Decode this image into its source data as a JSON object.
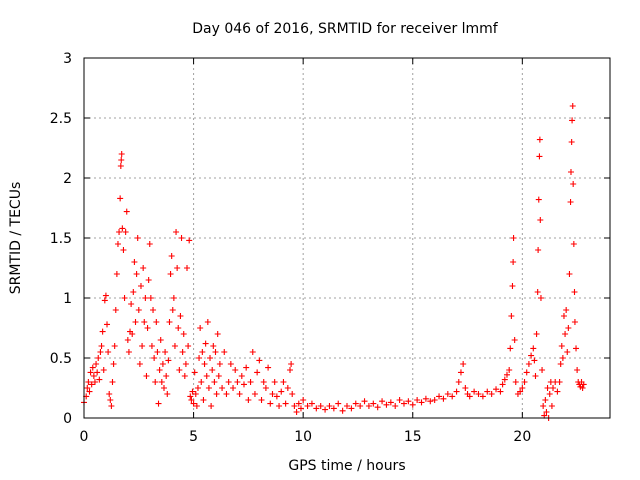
{
  "chart_data": {
    "type": "scatter",
    "title": "Day 046 of 2016, SRMTID for receiver lmmf",
    "xlabel": "GPS time / hours",
    "ylabel": "SRMTID / TECUs",
    "xlim": [
      0,
      24
    ],
    "ylim": [
      0,
      3
    ],
    "x_ticks": [
      0,
      5,
      10,
      15,
      20
    ],
    "x_tick_labels": [
      "0",
      "5",
      "10",
      "15",
      "20"
    ],
    "y_ticks": [
      0,
      0.5,
      1,
      1.5,
      2,
      2.5,
      3
    ],
    "y_tick_labels": [
      "0",
      "0.5",
      "1",
      "1.5",
      "2",
      "2.5",
      "3"
    ],
    "grid": true,
    "marker": "+",
    "series": [
      {
        "name": "SRMTID",
        "color": "#ff0000",
        "points": [
          [
            0.0,
            0.13
          ],
          [
            0.1,
            0.18
          ],
          [
            0.15,
            0.25
          ],
          [
            0.2,
            0.3
          ],
          [
            0.25,
            0.22
          ],
          [
            0.3,
            0.38
          ],
          [
            0.35,
            0.28
          ],
          [
            0.4,
            0.42
          ],
          [
            0.45,
            0.35
          ],
          [
            0.5,
            0.3
          ],
          [
            0.55,
            0.45
          ],
          [
            0.6,
            0.38
          ],
          [
            0.65,
            0.5
          ],
          [
            0.7,
            0.32
          ],
          [
            0.75,
            0.55
          ],
          [
            0.8,
            0.6
          ],
          [
            0.85,
            0.72
          ],
          [
            0.9,
            0.4
          ],
          [
            0.95,
            0.98
          ],
          [
            1.0,
            1.02
          ],
          [
            1.05,
            0.78
          ],
          [
            1.1,
            0.55
          ],
          [
            1.15,
            0.2
          ],
          [
            1.2,
            0.15
          ],
          [
            1.25,
            0.1
          ],
          [
            1.3,
            0.3
          ],
          [
            1.35,
            0.45
          ],
          [
            1.4,
            0.6
          ],
          [
            1.45,
            0.9
          ],
          [
            1.5,
            1.2
          ],
          [
            1.55,
            1.45
          ],
          [
            1.6,
            1.55
          ],
          [
            1.65,
            1.83
          ],
          [
            1.68,
            2.1
          ],
          [
            1.7,
            2.15
          ],
          [
            1.72,
            2.2
          ],
          [
            1.75,
            1.58
          ],
          [
            1.8,
            1.4
          ],
          [
            1.85,
            1.0
          ],
          [
            1.9,
            1.55
          ],
          [
            1.95,
            1.72
          ],
          [
            2.0,
            0.65
          ],
          [
            2.05,
            0.55
          ],
          [
            2.1,
            0.72
          ],
          [
            2.15,
            0.95
          ],
          [
            2.2,
            0.7
          ],
          [
            2.25,
            1.05
          ],
          [
            2.3,
            1.3
          ],
          [
            2.35,
            0.8
          ],
          [
            2.4,
            1.2
          ],
          [
            2.45,
            1.5
          ],
          [
            2.5,
            0.9
          ],
          [
            2.55,
            0.45
          ],
          [
            2.6,
            1.1
          ],
          [
            2.65,
            0.6
          ],
          [
            2.7,
            1.25
          ],
          [
            2.75,
            0.8
          ],
          [
            2.8,
            1.0
          ],
          [
            2.85,
            0.35
          ],
          [
            2.9,
            0.75
          ],
          [
            2.95,
            1.15
          ],
          [
            3.0,
            1.45
          ],
          [
            3.05,
            1.0
          ],
          [
            3.1,
            0.6
          ],
          [
            3.15,
            0.9
          ],
          [
            3.2,
            0.5
          ],
          [
            3.25,
            0.3
          ],
          [
            3.3,
            0.8
          ],
          [
            3.35,
            0.55
          ],
          [
            3.4,
            0.12
          ],
          [
            3.45,
            0.4
          ],
          [
            3.5,
            0.65
          ],
          [
            3.55,
            0.3
          ],
          [
            3.6,
            0.45
          ],
          [
            3.65,
            0.25
          ],
          [
            3.7,
            0.55
          ],
          [
            3.75,
            0.35
          ],
          [
            3.8,
            0.2
          ],
          [
            3.85,
            0.48
          ],
          [
            3.9,
            0.8
          ],
          [
            3.95,
            1.2
          ],
          [
            4.0,
            1.35
          ],
          [
            4.05,
            0.9
          ],
          [
            4.1,
            1.0
          ],
          [
            4.15,
            0.6
          ],
          [
            4.2,
            1.55
          ],
          [
            4.25,
            1.25
          ],
          [
            4.3,
            0.75
          ],
          [
            4.35,
            0.4
          ],
          [
            4.4,
            0.85
          ],
          [
            4.45,
            1.5
          ],
          [
            4.5,
            0.55
          ],
          [
            4.55,
            0.7
          ],
          [
            4.6,
            0.35
          ],
          [
            4.65,
            0.45
          ],
          [
            4.7,
            1.25
          ],
          [
            4.75,
            0.6
          ],
          [
            4.8,
            1.48
          ],
          [
            4.85,
            0.18
          ],
          [
            4.9,
            0.15
          ],
          [
            4.95,
            0.22
          ],
          [
            5.0,
            0.12
          ],
          [
            5.05,
            0.38
          ],
          [
            5.1,
            0.2
          ],
          [
            5.15,
            0.1
          ],
          [
            5.2,
            0.25
          ],
          [
            5.25,
            0.5
          ],
          [
            5.3,
            0.75
          ],
          [
            5.35,
            0.3
          ],
          [
            5.4,
            0.55
          ],
          [
            5.45,
            0.15
          ],
          [
            5.5,
            0.45
          ],
          [
            5.55,
            0.62
          ],
          [
            5.6,
            0.35
          ],
          [
            5.65,
            0.8
          ],
          [
            5.7,
            0.25
          ],
          [
            5.75,
            0.5
          ],
          [
            5.8,
            0.1
          ],
          [
            5.85,
            0.4
          ],
          [
            5.9,
            0.6
          ],
          [
            5.95,
            0.3
          ],
          [
            6.0,
            0.55
          ],
          [
            6.05,
            0.2
          ],
          [
            6.1,
            0.7
          ],
          [
            6.15,
            0.35
          ],
          [
            6.2,
            0.45
          ],
          [
            6.3,
            0.25
          ],
          [
            6.4,
            0.55
          ],
          [
            6.5,
            0.2
          ],
          [
            6.6,
            0.3
          ],
          [
            6.7,
            0.45
          ],
          [
            6.8,
            0.25
          ],
          [
            6.9,
            0.4
          ],
          [
            7.0,
            0.3
          ],
          [
            7.1,
            0.2
          ],
          [
            7.2,
            0.35
          ],
          [
            7.3,
            0.28
          ],
          [
            7.4,
            0.42
          ],
          [
            7.5,
            0.15
          ],
          [
            7.6,
            0.3
          ],
          [
            7.7,
            0.55
          ],
          [
            7.8,
            0.2
          ],
          [
            7.9,
            0.38
          ],
          [
            8.0,
            0.48
          ],
          [
            8.1,
            0.15
          ],
          [
            8.2,
            0.3
          ],
          [
            8.3,
            0.25
          ],
          [
            8.4,
            0.42
          ],
          [
            8.5,
            0.12
          ],
          [
            8.6,
            0.2
          ],
          [
            8.7,
            0.3
          ],
          [
            8.8,
            0.18
          ],
          [
            8.9,
            0.1
          ],
          [
            9.0,
            0.22
          ],
          [
            9.1,
            0.3
          ],
          [
            9.2,
            0.12
          ],
          [
            9.3,
            0.25
          ],
          [
            9.4,
            0.4
          ],
          [
            9.45,
            0.45
          ],
          [
            9.5,
            0.2
          ],
          [
            9.6,
            0.1
          ],
          [
            9.7,
            0.05
          ],
          [
            9.8,
            0.12
          ],
          [
            9.9,
            0.08
          ],
          [
            10.0,
            0.15
          ],
          [
            10.2,
            0.1
          ],
          [
            10.4,
            0.12
          ],
          [
            10.6,
            0.08
          ],
          [
            10.8,
            0.1
          ],
          [
            11.0,
            0.07
          ],
          [
            11.2,
            0.1
          ],
          [
            11.4,
            0.08
          ],
          [
            11.6,
            0.12
          ],
          [
            11.8,
            0.06
          ],
          [
            12.0,
            0.1
          ],
          [
            12.2,
            0.08
          ],
          [
            12.4,
            0.12
          ],
          [
            12.6,
            0.1
          ],
          [
            12.8,
            0.14
          ],
          [
            13.0,
            0.1
          ],
          [
            13.2,
            0.12
          ],
          [
            13.4,
            0.09
          ],
          [
            13.6,
            0.14
          ],
          [
            13.8,
            0.11
          ],
          [
            14.0,
            0.13
          ],
          [
            14.2,
            0.1
          ],
          [
            14.4,
            0.15
          ],
          [
            14.6,
            0.12
          ],
          [
            14.8,
            0.14
          ],
          [
            15.0,
            0.11
          ],
          [
            15.2,
            0.15
          ],
          [
            15.4,
            0.13
          ],
          [
            15.6,
            0.16
          ],
          [
            15.8,
            0.14
          ],
          [
            16.0,
            0.15
          ],
          [
            16.2,
            0.18
          ],
          [
            16.4,
            0.16
          ],
          [
            16.6,
            0.2
          ],
          [
            16.8,
            0.18
          ],
          [
            17.0,
            0.22
          ],
          [
            17.1,
            0.3
          ],
          [
            17.2,
            0.38
          ],
          [
            17.3,
            0.45
          ],
          [
            17.4,
            0.25
          ],
          [
            17.5,
            0.2
          ],
          [
            17.6,
            0.18
          ],
          [
            17.8,
            0.22
          ],
          [
            18.0,
            0.2
          ],
          [
            18.2,
            0.18
          ],
          [
            18.4,
            0.22
          ],
          [
            18.6,
            0.2
          ],
          [
            18.8,
            0.24
          ],
          [
            19.0,
            0.22
          ],
          [
            19.1,
            0.28
          ],
          [
            19.2,
            0.32
          ],
          [
            19.3,
            0.36
          ],
          [
            19.4,
            0.4
          ],
          [
            19.45,
            0.58
          ],
          [
            19.5,
            0.85
          ],
          [
            19.55,
            1.1
          ],
          [
            19.58,
            1.3
          ],
          [
            19.6,
            1.5
          ],
          [
            19.65,
            0.65
          ],
          [
            19.7,
            0.3
          ],
          [
            19.8,
            0.2
          ],
          [
            19.9,
            0.22
          ],
          [
            20.0,
            0.25
          ],
          [
            20.1,
            0.3
          ],
          [
            20.2,
            0.38
          ],
          [
            20.3,
            0.45
          ],
          [
            20.4,
            0.52
          ],
          [
            20.5,
            0.58
          ],
          [
            20.55,
            0.48
          ],
          [
            20.6,
            0.35
          ],
          [
            20.65,
            0.7
          ],
          [
            20.7,
            1.05
          ],
          [
            20.72,
            1.4
          ],
          [
            20.75,
            1.82
          ],
          [
            20.78,
            2.18
          ],
          [
            20.8,
            2.32
          ],
          [
            20.82,
            1.65
          ],
          [
            20.85,
            1.0
          ],
          [
            20.9,
            0.4
          ],
          [
            20.95,
            0.1
          ],
          [
            21.0,
            0.02
          ],
          [
            21.05,
            0.15
          ],
          [
            21.1,
            0.05
          ],
          [
            21.15,
            0.25
          ],
          [
            21.2,
            0.0
          ],
          [
            21.25,
            0.2
          ],
          [
            21.3,
            0.3
          ],
          [
            21.35,
            0.1
          ],
          [
            21.4,
            0.25
          ],
          [
            21.5,
            0.3
          ],
          [
            21.6,
            0.22
          ],
          [
            21.7,
            0.3
          ],
          [
            21.75,
            0.45
          ],
          [
            21.8,
            0.6
          ],
          [
            21.85,
            0.5
          ],
          [
            21.9,
            0.85
          ],
          [
            21.95,
            0.7
          ],
          [
            22.0,
            0.9
          ],
          [
            22.05,
            0.55
          ],
          [
            22.1,
            0.75
          ],
          [
            22.15,
            1.2
          ],
          [
            22.2,
            1.8
          ],
          [
            22.22,
            2.05
          ],
          [
            22.25,
            2.3
          ],
          [
            22.27,
            2.48
          ],
          [
            22.3,
            2.6
          ],
          [
            22.32,
            1.95
          ],
          [
            22.35,
            1.45
          ],
          [
            22.38,
            1.05
          ],
          [
            22.4,
            0.8
          ],
          [
            22.45,
            0.58
          ],
          [
            22.5,
            0.4
          ],
          [
            22.55,
            0.3
          ],
          [
            22.6,
            0.28
          ],
          [
            22.65,
            0.26
          ],
          [
            22.7,
            0.3
          ],
          [
            22.75,
            0.25
          ],
          [
            22.8,
            0.28
          ]
        ]
      }
    ]
  }
}
